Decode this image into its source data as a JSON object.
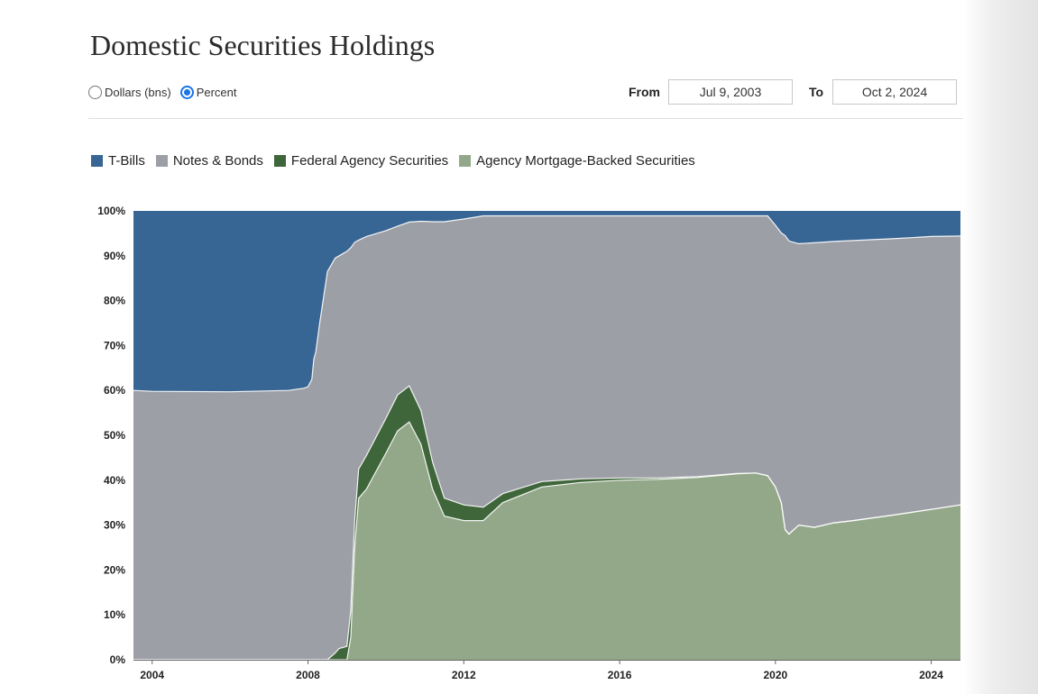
{
  "title": "Domestic Securities Holdings",
  "units": {
    "options": [
      {
        "label": "Dollars (bns)",
        "selected": false
      },
      {
        "label": "Percent",
        "selected": true
      }
    ]
  },
  "range": {
    "from_label": "From",
    "from_value": "Jul 9, 2003",
    "to_label": "To",
    "to_value": "Oct 2, 2024"
  },
  "chart_data": {
    "type": "area",
    "stacked": true,
    "percent": true,
    "yticks": [
      "100%",
      "90%",
      "80%",
      "70%",
      "60%",
      "50%",
      "40%",
      "30%",
      "20%",
      "10%",
      "0%"
    ],
    "xticks": [
      {
        "label": "2004",
        "x": 2004
      },
      {
        "label": "2008",
        "x": 2008
      },
      {
        "label": "2012",
        "x": 2012
      },
      {
        "label": "2016",
        "x": 2016
      },
      {
        "label": "2020",
        "x": 2020
      },
      {
        "label": "2024",
        "x": 2024
      }
    ],
    "ylim": [
      0,
      100
    ],
    "series": [
      {
        "name": "T-Bills",
        "color": "#376594"
      },
      {
        "name": "Notes & Bonds",
        "color": "#9d9fa6"
      },
      {
        "name": "Federal Agency Securities",
        "color": "#3f663a"
      },
      {
        "name": "Agency Mortgage-Backed Securities",
        "color": "#93a889"
      }
    ],
    "x": [
      2003.52,
      2004.0,
      2006.0,
      2007.5,
      2007.9,
      2008.0,
      2008.1,
      2008.15,
      2008.2,
      2008.3,
      2008.5,
      2008.7,
      2008.8,
      2009.0,
      2009.1,
      2009.2,
      2009.3,
      2009.5,
      2010.0,
      2010.3,
      2010.6,
      2010.9,
      2011.2,
      2011.5,
      2012.0,
      2012.5,
      2013.0,
      2014.0,
      2015.0,
      2016.0,
      2017.0,
      2018.0,
      2019.0,
      2019.5,
      2019.8,
      2020.0,
      2020.15,
      2020.25,
      2020.35,
      2020.6,
      2021.0,
      2021.5,
      2022.0,
      2023.0,
      2024.0,
      2024.75
    ],
    "mbs": [
      0,
      0,
      0,
      0,
      0,
      0,
      0,
      0,
      0,
      0,
      0,
      0,
      0,
      0,
      5,
      25,
      36,
      38,
      46,
      51,
      53,
      48,
      38,
      32,
      31,
      31,
      35,
      38.5,
      39.5,
      40,
      40.2,
      40.6,
      41.4,
      41.6,
      41,
      38.5,
      35,
      29,
      28,
      30,
      29.5,
      30.5,
      31,
      32.2,
      33.5,
      34.5
    ],
    "agency": [
      0,
      0,
      0,
      0,
      0,
      0,
      0,
      0,
      0,
      0,
      0,
      1.5,
      2.5,
      3,
      6,
      6,
      6.5,
      7.5,
      7.8,
      8,
      8,
      7.5,
      6,
      4,
      3.5,
      3,
      2,
      1.2,
      0.8,
      0.5,
      0.3,
      0.2,
      0.1,
      0,
      0,
      0,
      0,
      0,
      0,
      0,
      0,
      0,
      0,
      0,
      0,
      0
    ],
    "notes": [
      60.0,
      59.8,
      59.7,
      60.0,
      60.5,
      60.8,
      62.5,
      67.0,
      68.5,
      75.0,
      86.5,
      88.0,
      87.5,
      88.0,
      80.8,
      62.0,
      51.0,
      48.8,
      41.8,
      37.6,
      36.5,
      42.2,
      53.6,
      61.6,
      63.7,
      64.9,
      61.9,
      59.2,
      58.6,
      58.4,
      58.4,
      58.1,
      57.4,
      57.3,
      57.9,
      58.3,
      60.1,
      65.5,
      65.3,
      62.7,
      63.4,
      62.7,
      62.4,
      61.6,
      60.8,
      59.9
    ]
  }
}
